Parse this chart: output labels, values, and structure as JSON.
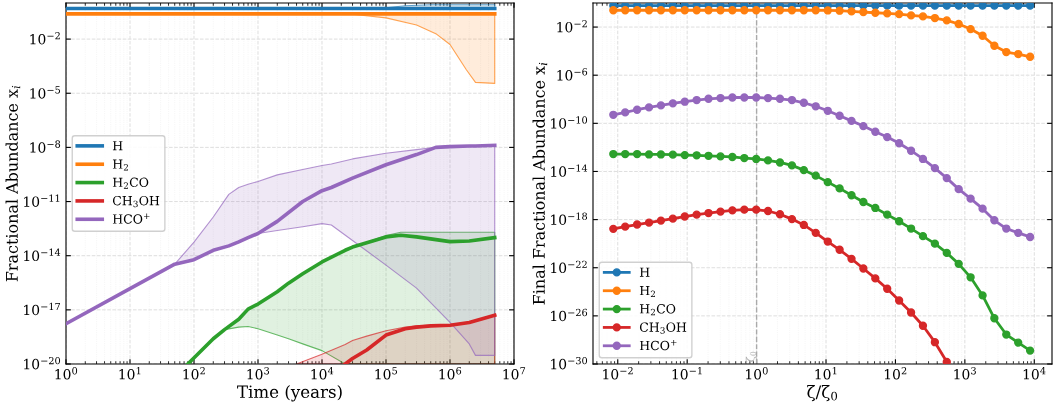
{
  "chart_data": [
    {
      "type": "line",
      "xlabel": "Time (years)",
      "ylabel": "Fractional Abundance x$_{i}$",
      "log": "xy",
      "grid": true,
      "legend": "center left",
      "marker": "none",
      "xlim": [
        1,
        10000000
      ],
      "ylim": [
        1e-20,
        1
      ],
      "xticks": [
        {
          "value": 1,
          "label": "10$^{0}$"
        },
        {
          "value": 10,
          "label": "10$^{1}$"
        },
        {
          "value": 100,
          "label": "10$^{2}$"
        },
        {
          "value": 1000,
          "label": "10$^{3}$"
        },
        {
          "value": 10000,
          "label": "10$^{4}$"
        },
        {
          "value": 100000,
          "label": "10$^{5}$"
        },
        {
          "value": 1000000,
          "label": "10$^{6}$"
        },
        {
          "value": 10000000,
          "label": "10$^{7}$"
        }
      ],
      "yticks": [
        {
          "value": 1e-20,
          "label": "10$^{−20}$"
        },
        {
          "value": 1e-17,
          "label": "10$^{−17}$"
        },
        {
          "value": 1e-14,
          "label": "10$^{−14}$"
        },
        {
          "value": 1e-11,
          "label": "10$^{−11}$"
        },
        {
          "value": 1e-08,
          "label": "10$^{−8}$"
        },
        {
          "value": 1e-05,
          "label": "10$^{−5}$"
        },
        {
          "value": 0.01,
          "label": "10$^{−2}$"
        }
      ],
      "series": [
        {
          "name": "H",
          "color": "#1f77b4",
          "x": [
            1,
            10000,
            100000,
            200000,
            500000,
            1000000,
            5000000
          ],
          "values": [
            0.5,
            0.5,
            0.5,
            0.5,
            0.5,
            0.5,
            0.5
          ],
          "lower": [
            0.5,
            0.5,
            0.5,
            0.5,
            0.5,
            0.5,
            0.5
          ],
          "upper": [
            0.5,
            0.5,
            0.55,
            0.7,
            0.8,
            0.8,
            0.8
          ]
        },
        {
          "name": "H$_{2}$",
          "color": "#ff7f0e",
          "x": [
            1,
            10000,
            30000,
            100000,
            300000,
            600000,
            1000000,
            1800000,
            2500000,
            5000000
          ],
          "values": [
            0.25,
            0.25,
            0.25,
            0.25,
            0.25,
            0.25,
            0.25,
            0.25,
            0.25,
            0.25
          ],
          "lower": [
            0.25,
            0.25,
            0.24,
            0.15,
            0.06,
            0.02,
            0.005,
            0.0002,
            4e-05,
            3.5e-05
          ],
          "upper": [
            0.25,
            0.25,
            0.25,
            0.25,
            0.25,
            0.25,
            0.25,
            0.25,
            0.25,
            0.25
          ]
        },
        {
          "name": "H$_{2}$CO",
          "color": "#2ca02c",
          "x": [
            80,
            200,
            300,
            500,
            700,
            1000,
            2000,
            3000,
            5000,
            10000,
            23000,
            30000,
            100000,
            170000,
            300000,
            1000000,
            2000000,
            5000000
          ],
          "values": [
            1e-20,
            2.5e-19,
            8e-19,
            3e-18,
            1.1e-17,
            2.1e-17,
            1e-16,
            3e-16,
            1e-15,
            4.5e-15,
            2e-14,
            3e-14,
            1.1e-13,
            1.35e-13,
            1.1e-13,
            6e-14,
            6.5e-14,
            1e-13
          ],
          "lower": [
            1e-20,
            2.5e-19,
            8e-19,
            1.1e-18,
            1.2e-18,
            9e-19,
            4e-19,
            2.5e-19,
            1.3e-19,
            5.5e-20,
            1e-20,
            1e-20,
            1e-20,
            1e-20,
            1e-20,
            1e-20,
            1e-20,
            1e-20
          ],
          "upper": [
            1e-20,
            2.5e-19,
            8e-19,
            3e-18,
            1.1e-17,
            2.1e-17,
            1e-16,
            3e-16,
            1e-15,
            4.5e-15,
            2e-14,
            3e-14,
            1.3e-13,
            2e-13,
            2e-13,
            2e-13,
            2e-13,
            2e-13
          ]
        },
        {
          "name": "CH$_{3}$OH",
          "color": "#d62728",
          "x": [
            4000,
            10000,
            23000,
            30000,
            50000,
            100000,
            200000,
            300000,
            500000,
            1000000,
            2000000,
            5000000
          ],
          "values": [
            null,
            null,
            1e-20,
            2e-20,
            6e-20,
            4e-19,
            9e-19,
            1.1e-18,
            1.3e-18,
            1.4e-18,
            2e-18,
            5e-18
          ],
          "lower": [
            1e-20,
            1e-20,
            1e-20,
            1e-20,
            1e-20,
            1e-20,
            1e-20,
            1e-20,
            1e-20,
            1e-20,
            1e-20,
            1e-20
          ],
          "upper": [
            1e-20,
            3.5e-20,
            1.2e-19,
            2e-19,
            3.5e-19,
            7e-19,
            1.1e-18,
            1.3e-18,
            1.4e-18,
            1.5e-18,
            2e-18,
            5e-18
          ]
        },
        {
          "name": "HCO$^{+}$",
          "color": "#9467bd",
          "x": [
            1,
            10,
            50,
            100,
            200,
            350,
            500,
            700,
            1000,
            2000,
            5000,
            10000,
            14000,
            30000,
            100000,
            300000,
            600000,
            1000000,
            2000000,
            2500000,
            5000000
          ],
          "values": [
            1.7e-18,
            1.5e-16,
            3.4e-15,
            6e-15,
            2e-14,
            3.5e-14,
            5.8e-14,
            1e-13,
            1.7e-13,
            8e-13,
            1e-11,
            4e-11,
            6e-11,
            2e-10,
            1.1e-09,
            4e-09,
            1e-08,
            1.1e-08,
            1.2e-08,
            1.2e-08,
            1.3e-08
          ],
          "lower": [
            1.7e-18,
            1.5e-16,
            3.4e-15,
            6e-15,
            2e-14,
            3.5e-14,
            5.8e-14,
            1e-13,
            1.7e-13,
            2.5e-13,
            4e-13,
            6e-13,
            5e-13,
            7e-14,
            3e-15,
            1.6e-16,
            1.3e-17,
            2e-18,
            1.3e-19,
            3e-20,
            3e-20
          ],
          "upper": [
            1.7e-18,
            1.5e-16,
            3.4e-15,
            5.6e-14,
            1.4e-12,
            2.5e-11,
            6e-11,
            9e-11,
            1.3e-10,
            3e-10,
            6e-10,
            1e-09,
            1.2e-09,
            2.3e-09,
            4.7e-09,
            7.5e-09,
            1e-08,
            1.1e-08,
            1.2e-08,
            1.2e-08,
            1.3e-08
          ]
        }
      ]
    },
    {
      "type": "line",
      "xlabel": "ζ/ζ$_{0}$",
      "ylabel": "Final Fractional Abundance x$_{i}$",
      "log": "xy",
      "grid": true,
      "legend": "bottom left",
      "marker": "circle",
      "xlim": [
        0.0044,
        18000
      ],
      "ylim": [
        1e-30,
        1
      ],
      "xticks": [
        {
          "value": 0.01,
          "label": "10$^{−2}$"
        },
        {
          "value": 0.1,
          "label": "10$^{−1}$"
        },
        {
          "value": 1,
          "label": "10$^{0}$"
        },
        {
          "value": 10,
          "label": "10$^{1}$"
        },
        {
          "value": 100,
          "label": "10$^{2}$"
        },
        {
          "value": 1000,
          "label": "10$^{3}$"
        },
        {
          "value": 10000,
          "label": "10$^{4}$"
        }
      ],
      "yticks": [
        {
          "value": 1e-30,
          "label": "10$^{−30}$"
        },
        {
          "value": 1e-26,
          "label": "10$^{−26}$"
        },
        {
          "value": 1e-22,
          "label": "10$^{−22}$"
        },
        {
          "value": 1e-18,
          "label": "10$^{−18}$"
        },
        {
          "value": 1e-14,
          "label": "10$^{−14}$"
        },
        {
          "value": 1e-10,
          "label": "10$^{−10}$"
        },
        {
          "value": 1e-06,
          "label": "10$^{−6}$"
        },
        {
          "value": 0.01,
          "label": "10$^{−2}$"
        }
      ],
      "ref_lines": [
        {
          "axis": "x",
          "value": 1,
          "label": "ζ$_{0}$",
          "color": "#aaaaaa",
          "line_style": "dashed"
        }
      ],
      "x": [
        0.00863,
        0.0128,
        0.019,
        0.0282,
        0.0419,
        0.0622,
        0.0923,
        0.137,
        0.203,
        0.302,
        0.448,
        0.665,
        0.987,
        1.46,
        2.17,
        3.23,
        4.79,
        7.11,
        10.6,
        15.7,
        23.3,
        34.5,
        51.3,
        76.1,
        113,
        168,
        249,
        370,
        549,
        815,
        1210,
        1800,
        2660,
        3950,
        5870,
        8710
      ],
      "series": [
        {
          "name": "H",
          "color": "#1f77b4",
          "values": [
            0.6,
            0.6,
            0.6,
            0.6,
            0.6,
            0.6,
            0.6,
            0.6,
            0.6,
            0.6,
            0.6,
            0.6,
            0.6,
            0.6,
            0.6,
            0.6,
            0.6,
            0.6,
            0.6,
            0.6,
            0.6,
            0.6,
            0.6,
            0.6,
            0.6,
            0.6,
            0.6,
            0.6,
            0.6,
            0.6,
            0.6,
            0.6,
            0.6,
            0.6,
            0.6,
            0.6
          ]
        },
        {
          "name": "H$_{2}$",
          "color": "#ff7f0e",
          "values": [
            0.25,
            0.25,
            0.25,
            0.25,
            0.25,
            0.25,
            0.25,
            0.25,
            0.25,
            0.25,
            0.25,
            0.25,
            0.25,
            0.25,
            0.25,
            0.25,
            0.25,
            0.25,
            0.24,
            0.23,
            0.2,
            0.177,
            0.155,
            0.137,
            0.12,
            0.093,
            0.077,
            0.056,
            0.036,
            0.018,
            0.0068,
            0.0019,
            0.00028,
            8.4e-05,
            5.7e-05,
            3.4e-05
          ]
        },
        {
          "name": "H$_{2}$CO",
          "color": "#2ca02c",
          "values": [
            2.8e-13,
            2.8e-13,
            2.8e-13,
            2.6e-13,
            2.6e-13,
            2.5e-13,
            2.3e-13,
            2.2e-13,
            2e-13,
            1.8e-13,
            1.6e-13,
            1.3e-13,
            1.1e-13,
            8.3e-14,
            5.6e-14,
            3.2e-14,
            1.3e-14,
            4.5e-15,
            1.3e-15,
            3.9e-16,
            1.05e-16,
            2.9e-17,
            9.3e-18,
            2.6e-18,
            7.3e-19,
            1.8e-19,
            4.2e-20,
            1e-20,
            1.7e-21,
            2.1e-22,
            1.6e-23,
            5e-25,
            6.3e-27,
            2.8e-28,
            6e-29,
            1.3e-29
          ]
        },
        {
          "name": "CH$_{3}$OH",
          "color": "#d62728",
          "values": [
            1.7e-19,
            2.6e-19,
            3.9e-19,
            5.6e-19,
            8.3e-19,
            1.2e-18,
            1.8e-18,
            2.6e-18,
            3.5e-18,
            4.6e-18,
            5.9e-18,
            6.7e-18,
            6.7e-18,
            5.2e-18,
            2.8e-18,
            1.1e-18,
            3.6e-19,
            7.9e-20,
            1.5e-20,
            3.1e-21,
            5.5e-22,
            8.7e-23,
            1.3e-23,
            1.8e-24,
            1.9e-25,
            1.9e-26,
            1.5e-27,
            6.5e-29,
            1.5e-30,
            null,
            null,
            null,
            null,
            null,
            null,
            null
          ]
        },
        {
          "name": "HCO$^{+}$",
          "color": "#9467bd",
          "values": [
            5.1e-10,
            8.1e-10,
            1.35e-09,
            2.1e-09,
            3.1e-09,
            4.6e-09,
            6.3e-09,
            8.6e-09,
            1.1e-08,
            1.26e-08,
            1.4e-08,
            1.4e-08,
            1.4e-08,
            1.26e-08,
            1.1e-08,
            8.6e-09,
            5.1e-09,
            2.6e-09,
            1.1e-09,
            4.3e-10,
            1.6e-10,
            5.9e-11,
            2e-11,
            7.2e-12,
            2.2e-12,
            5.3e-13,
            1.1e-13,
            1.9e-14,
            2.8e-15,
            3.4e-16,
            5.5e-17,
            8.1e-18,
            8.8e-19,
            1.8e-19,
            7.9e-20,
            3.6e-20
          ]
        }
      ]
    }
  ]
}
